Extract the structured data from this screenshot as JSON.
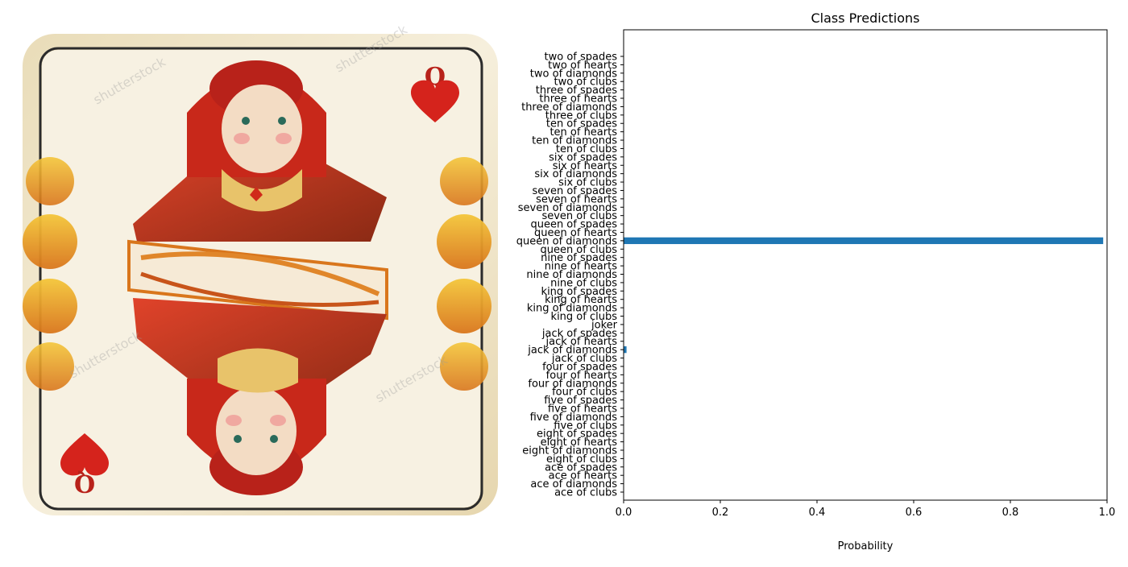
{
  "card_image": {
    "description_icon": "queen-of-hearts-card-image",
    "rank": "Q",
    "watermark": "shutterstock"
  },
  "chart_data": {
    "type": "bar",
    "orientation": "horizontal",
    "title": "Class Predictions",
    "xlabel": "Probability",
    "ylabel": "",
    "xlim": [
      0,
      1
    ],
    "xticks": [
      0.0,
      0.2,
      0.4,
      0.6,
      0.8,
      1.0
    ],
    "xtick_labels": [
      "0.0",
      "0.2",
      "0.4",
      "0.6",
      "0.8",
      "1.0"
    ],
    "grid": false,
    "bar_color": "#1f77b4",
    "categories": [
      "ace of clubs",
      "ace of diamonds",
      "ace of hearts",
      "ace of spades",
      "eight of clubs",
      "eight of diamonds",
      "eight of hearts",
      "eight of spades",
      "five of clubs",
      "five of diamonds",
      "five of hearts",
      "five of spades",
      "four of clubs",
      "four of diamonds",
      "four of hearts",
      "four of spades",
      "jack of clubs",
      "jack of diamonds",
      "jack of hearts",
      "jack of spades",
      "joker",
      "king of clubs",
      "king of diamonds",
      "king of hearts",
      "king of spades",
      "nine of clubs",
      "nine of diamonds",
      "nine of hearts",
      "nine of spades",
      "queen of clubs",
      "queen of diamonds",
      "queen of hearts",
      "queen of spades",
      "seven of clubs",
      "seven of diamonds",
      "seven of hearts",
      "seven of spades",
      "six of clubs",
      "six of diamonds",
      "six of hearts",
      "six of spades",
      "ten of clubs",
      "ten of diamonds",
      "ten of hearts",
      "ten of spades",
      "three of clubs",
      "three of diamonds",
      "three of hearts",
      "three of spades",
      "two of clubs",
      "two of diamonds",
      "two of hearts",
      "two of spades"
    ],
    "values": [
      0,
      0,
      0,
      0,
      0,
      0,
      0,
      0,
      0,
      0,
      0,
      0,
      0,
      0,
      0,
      0,
      0,
      0.006,
      0,
      0,
      0,
      0,
      0,
      0,
      0,
      0,
      0,
      0,
      0,
      0,
      0.992,
      0,
      0,
      0,
      0,
      0,
      0,
      0,
      0,
      0,
      0,
      0,
      0,
      0,
      0,
      0,
      0,
      0,
      0,
      0,
      0,
      0,
      0
    ]
  }
}
